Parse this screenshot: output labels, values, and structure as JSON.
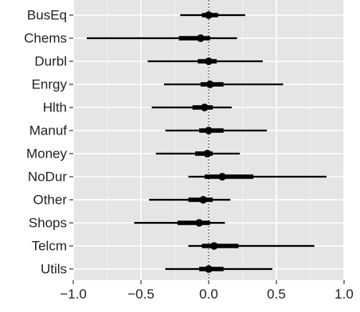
{
  "chart_data": {
    "type": "coefficient-interval",
    "title": "",
    "xlabel": "",
    "ylabel": "",
    "xlim": [
      -1.0,
      1.0
    ],
    "xticks": [
      -1.0,
      -0.5,
      0.0,
      0.5,
      1.0
    ],
    "xtick_labels": [
      "−1.0",
      "−0.5",
      "0.0",
      "0.5",
      "1.0"
    ],
    "reference_line": 0.0,
    "grid": true,
    "panel_color": "#e5e5e5",
    "grid_color": "#ffffff",
    "mark_color": "#000000",
    "categories": [
      "BusEq",
      "Chems",
      "Durbl",
      "Enrgy",
      "Hlth",
      "Manuf",
      "Money",
      "NoDur",
      "Other",
      "Shops",
      "Telcm",
      "Utils"
    ],
    "estimates": [
      0.0,
      -0.06,
      0.0,
      0.01,
      -0.03,
      0.0,
      -0.01,
      0.1,
      -0.04,
      -0.07,
      0.04,
      0.0
    ],
    "inner_lower": [
      -0.05,
      -0.22,
      -0.08,
      -0.06,
      -0.12,
      -0.07,
      -0.1,
      -0.03,
      -0.15,
      -0.23,
      -0.05,
      -0.07
    ],
    "inner_upper": [
      0.07,
      0.01,
      0.06,
      0.11,
      0.03,
      0.11,
      0.03,
      0.33,
      0.03,
      0.01,
      0.22,
      0.11
    ],
    "outer_lower": [
      -0.21,
      -0.9,
      -0.45,
      -0.33,
      -0.42,
      -0.32,
      -0.39,
      -0.15,
      -0.44,
      -0.55,
      -0.15,
      -0.32
    ],
    "outer_upper": [
      0.27,
      0.21,
      0.4,
      0.55,
      0.17,
      0.43,
      0.23,
      0.87,
      0.16,
      0.12,
      0.78,
      0.47
    ]
  }
}
